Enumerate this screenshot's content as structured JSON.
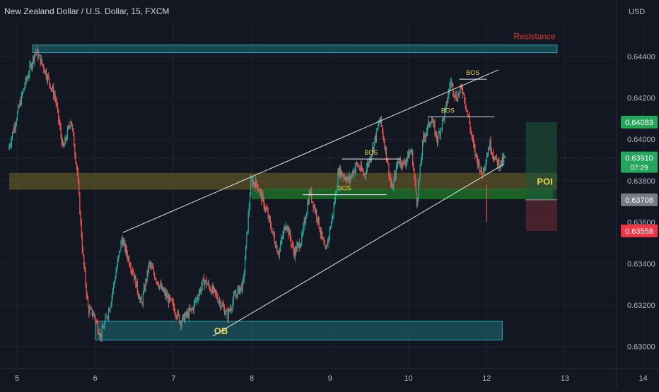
{
  "header": {
    "symbol_title": "New Zealand Dollar / U.S. Dollar, 15, FXCM",
    "currency_unit": "USD"
  },
  "chart_data": {
    "type": "candlestick",
    "ylim": [
      0.629,
      0.6457
    ],
    "y_ticks": [
      {
        "value": 0.644,
        "label": "0.64400"
      },
      {
        "value": 0.642,
        "label": "0.64200"
      },
      {
        "value": 0.64,
        "label": "0.64000"
      },
      {
        "value": 0.638,
        "label": "0.63800"
      },
      {
        "value": 0.636,
        "label": "0.63600"
      },
      {
        "value": 0.634,
        "label": "0.63400"
      },
      {
        "value": 0.632,
        "label": "0.63200"
      },
      {
        "value": 0.63,
        "label": "0.63000"
      }
    ],
    "x_ticks": [
      {
        "day": 5,
        "label": "5"
      },
      {
        "day": 6,
        "label": "6"
      },
      {
        "day": 7,
        "label": "7"
      },
      {
        "day": 8,
        "label": "8"
      },
      {
        "day": 9,
        "label": "9"
      },
      {
        "day": 10,
        "label": "10"
      },
      {
        "day": 11,
        "label": "12"
      },
      {
        "day": 12,
        "label": "13"
      },
      {
        "day": 13,
        "label": "14"
      }
    ],
    "price_path": [
      [
        4.9,
        0.6395
      ],
      [
        5.1,
        0.6425
      ],
      [
        5.25,
        0.6443
      ],
      [
        5.35,
        0.6435
      ],
      [
        5.5,
        0.642
      ],
      [
        5.6,
        0.6395
      ],
      [
        5.7,
        0.641
      ],
      [
        5.78,
        0.6385
      ],
      [
        5.85,
        0.6345
      ],
      [
        5.92,
        0.6318
      ],
      [
        6.0,
        0.6315
      ],
      [
        6.08,
        0.6305
      ],
      [
        6.2,
        0.632
      ],
      [
        6.35,
        0.6352
      ],
      [
        6.5,
        0.6335
      ],
      [
        6.6,
        0.632
      ],
      [
        6.7,
        0.634
      ],
      [
        6.85,
        0.6328
      ],
      [
        7.0,
        0.632
      ],
      [
        7.1,
        0.6312
      ],
      [
        7.25,
        0.6318
      ],
      [
        7.4,
        0.6332
      ],
      [
        7.55,
        0.6325
      ],
      [
        7.7,
        0.6315
      ],
      [
        7.8,
        0.6325
      ],
      [
        7.9,
        0.633
      ],
      [
        8.0,
        0.638
      ],
      [
        8.08,
        0.6378
      ],
      [
        8.2,
        0.6365
      ],
      [
        8.35,
        0.6345
      ],
      [
        8.45,
        0.636
      ],
      [
        8.55,
        0.6345
      ],
      [
        8.65,
        0.6352
      ],
      [
        8.75,
        0.6375
      ],
      [
        8.85,
        0.6362
      ],
      [
        8.95,
        0.6345
      ],
      [
        9.05,
        0.6365
      ],
      [
        9.12,
        0.6385
      ],
      [
        9.25,
        0.638
      ],
      [
        9.35,
        0.6388
      ],
      [
        9.45,
        0.6383
      ],
      [
        9.55,
        0.6395
      ],
      [
        9.65,
        0.641
      ],
      [
        9.72,
        0.6395
      ],
      [
        9.8,
        0.6375
      ],
      [
        9.88,
        0.639
      ],
      [
        9.95,
        0.6388
      ],
      [
        10.05,
        0.6395
      ],
      [
        10.12,
        0.637
      ],
      [
        10.2,
        0.64
      ],
      [
        10.3,
        0.641
      ],
      [
        10.38,
        0.64
      ],
      [
        10.48,
        0.6413
      ],
      [
        10.55,
        0.6428
      ],
      [
        10.62,
        0.642
      ],
      [
        10.7,
        0.6425
      ],
      [
        10.78,
        0.641
      ],
      [
        10.85,
        0.6395
      ],
      [
        10.95,
        0.6383
      ],
      [
        11.05,
        0.6398
      ],
      [
        11.12,
        0.639
      ],
      [
        11.18,
        0.6388
      ],
      [
        11.25,
        0.6391
      ]
    ],
    "wick_low": [
      11.0,
      0.636
    ],
    "levels": {
      "resistance_label": "Resistance",
      "resistance_zone": {
        "x_from": 5.2,
        "x_to": 11.9,
        "y_low": 0.64418,
        "y_high": 0.64455
      },
      "poi_label": "POI",
      "poi_zone": {
        "x_from": 4.9,
        "x_to": 11.9,
        "y_low": 0.63757,
        "y_high": 0.63838
      },
      "green_zone": {
        "x_from": 8.0,
        "x_to": 11.85,
        "y_low": 0.63711,
        "y_high": 0.63762
      },
      "ob_label": "OB",
      "ob_zone": {
        "x_from": 6.0,
        "x_to": 11.2,
        "y_low": 0.63032,
        "y_high": 0.63122
      },
      "bos": [
        {
          "label": "BOS",
          "x_from": 10.65,
          "x_to": 11.0,
          "y": 0.6429
        },
        {
          "label": "BOS",
          "x_from": 10.25,
          "x_to": 11.1,
          "y": 0.64108
        },
        {
          "label": "BOS",
          "x_from": 9.15,
          "x_to": 9.9,
          "y": 0.63905
        },
        {
          "label": "BOS",
          "x_from": 8.65,
          "x_to": 9.72,
          "y": 0.63733
        }
      ],
      "channel_upper": [
        [
          6.35,
          0.6355
        ],
        [
          11.15,
          0.64335
        ]
      ],
      "channel_lower": [
        [
          7.5,
          0.6305
        ],
        [
          11.22,
          0.6388
        ]
      ],
      "trade_box": {
        "x_from": 11.5,
        "x_to": 11.9,
        "entry": 0.63708,
        "target": 0.64083,
        "stop": 0.63558
      }
    },
    "price_labels": [
      {
        "value": 0.64083,
        "text": "0.64083",
        "color": "#26a65b"
      },
      {
        "value": 0.6391,
        "text": "0.63910",
        "sub": "07:29",
        "color": "#26a65b"
      },
      {
        "value": 0.63708,
        "text": "0.63708",
        "color": "#787b86"
      },
      {
        "value": 0.63558,
        "text": "0.63558",
        "color": "#f23645"
      }
    ],
    "colors": {
      "up": "#26a69a",
      "down": "#ef5350",
      "zone_teal": "#1f6f78",
      "poi": "#8a7a2a",
      "green_zone": "#1e7a2a",
      "resistance_text": "#e53935",
      "bos_text": "#e9d74a"
    }
  }
}
